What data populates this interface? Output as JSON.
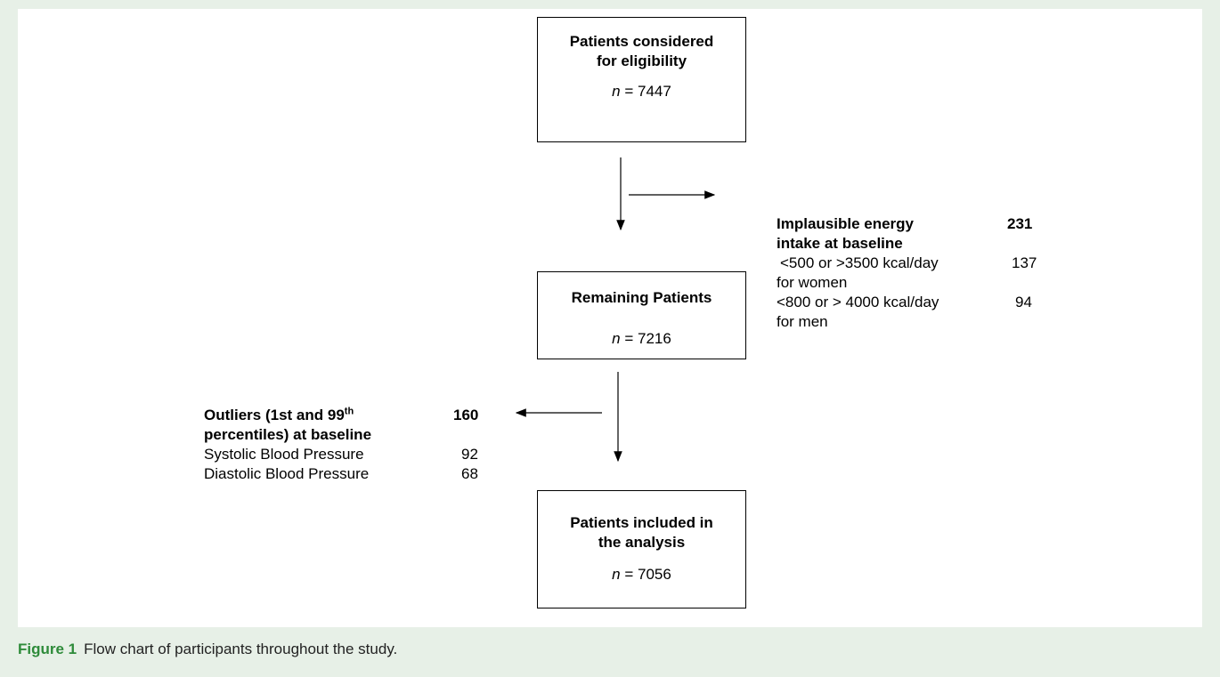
{
  "boxes": [
    {
      "title": [
        "Patients considered",
        "for eligibility"
      ],
      "n": {
        "symbol": "n",
        "value": "= 7447"
      }
    },
    {
      "title": [
        "Remaining Patients"
      ],
      "n": {
        "symbol": "n",
        "value": "= 7216"
      }
    },
    {
      "title": [
        "Patients included in",
        "the analysis"
      ],
      "n": {
        "symbol": "n",
        "value": "= 7056"
      }
    }
  ],
  "exclusion_energy": {
    "title": [
      "Implausible energy",
      "intake at baseline"
    ],
    "count": 231,
    "items": [
      {
        "label": [
          "<500 or >3500 kcal/day",
          "for women"
        ],
        "count": 137
      },
      {
        "label": [
          "<800 or > 4000 kcal/day",
          "for men"
        ],
        "count": 94
      }
    ]
  },
  "exclusion_outliers": {
    "title_start": "Outliers (1st and 99",
    "title_sup": "th",
    "title_end": "percentiles) at baseline",
    "count": 160,
    "items": [
      {
        "label": "Systolic Blood Pressure",
        "count": 92
      },
      {
        "label": "Diastolic Blood Pressure",
        "count": 68
      }
    ]
  },
  "caption": {
    "label": "Figure 1",
    "text": "Flow chart of participants throughout the study."
  }
}
